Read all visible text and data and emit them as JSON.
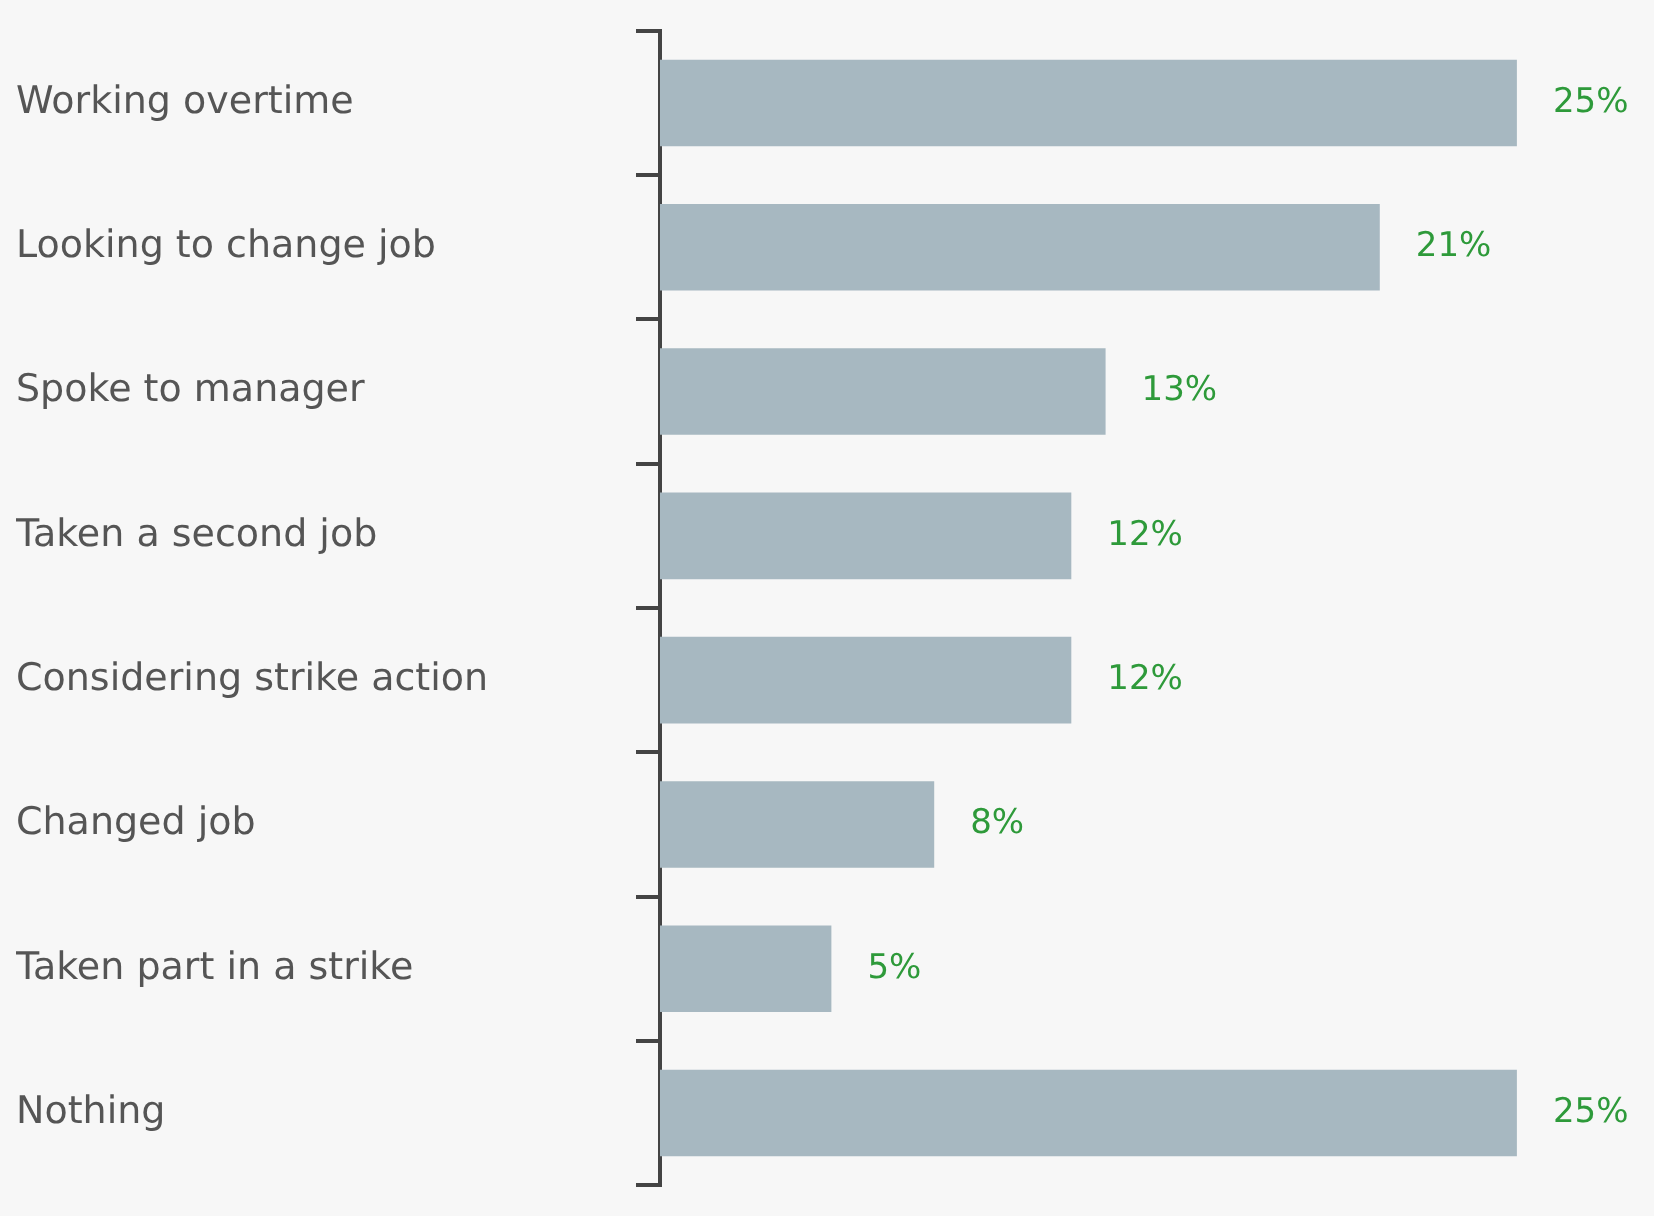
{
  "chart_data": {
    "type": "bar",
    "orientation": "horizontal",
    "categories": [
      "Working overtime",
      "Looking to change job",
      "Spoke to manager",
      "Taken a second job",
      "Considering strike action",
      "Changed job",
      "Taken part in a strike",
      "Nothing"
    ],
    "values": [
      25,
      21,
      13,
      12,
      12,
      8,
      5,
      25
    ],
    "value_labels": [
      "25%",
      "21%",
      "13%",
      "12%",
      "12%",
      "8%",
      "5%",
      "25%"
    ],
    "color": "#a7b8c1"
  }
}
